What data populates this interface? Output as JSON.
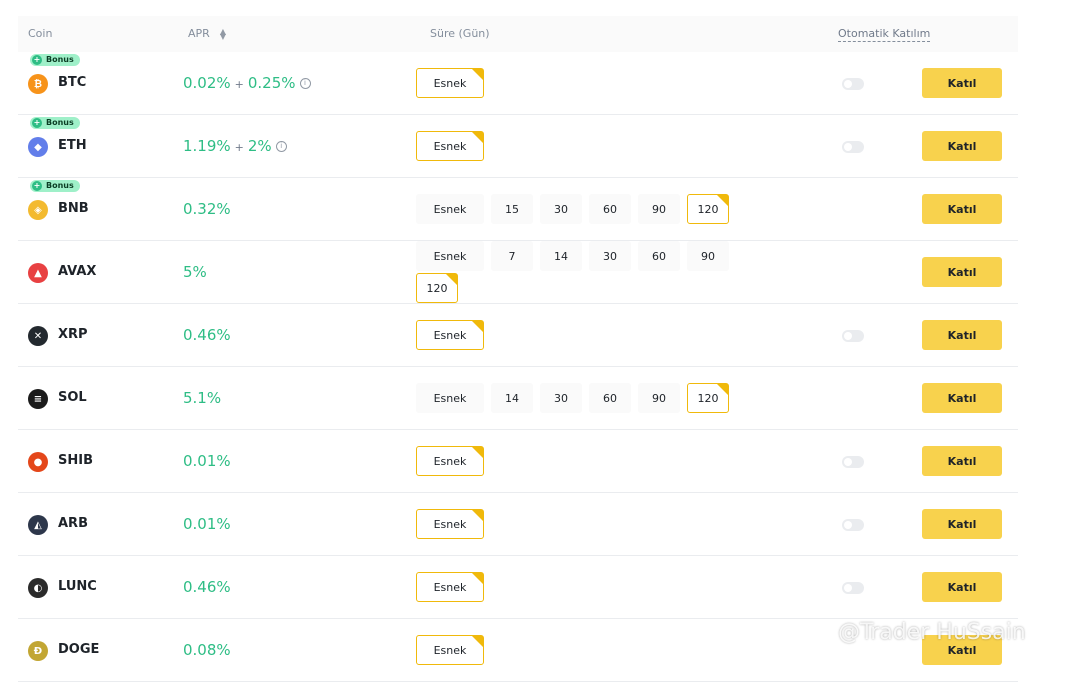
{
  "header": {
    "coin": "Coin",
    "apr": "APR",
    "duration": "Süre (Gün)",
    "auto": "Otomatik Katılım"
  },
  "bonus_label": "Bonus",
  "join_label": "Katıl",
  "flexible_label": "Esnek",
  "rows": [
    {
      "coin": "BTC",
      "color": "#f7931a",
      "glyph": "₿",
      "bonus": true,
      "apr": "0.02%",
      "plus": "+",
      "bonus_apr": "0.25%",
      "info": true,
      "durations": [
        "Esnek"
      ],
      "toggle": true
    },
    {
      "coin": "ETH",
      "color": "#627eea",
      "glyph": "◆",
      "bonus": true,
      "apr": "1.19%",
      "plus": "+",
      "bonus_apr": "2%",
      "info": true,
      "durations": [
        "Esnek"
      ],
      "toggle": true
    },
    {
      "coin": "BNB",
      "color": "#f3ba2f",
      "glyph": "◈",
      "bonus": true,
      "apr": "0.32%",
      "durations": [
        "Esnek",
        "15",
        "30",
        "60",
        "90",
        "120"
      ],
      "toggle": false
    },
    {
      "coin": "AVAX",
      "color": "#e84142",
      "glyph": "▲",
      "bonus": false,
      "apr": "5%",
      "durations": [
        "Esnek",
        "7",
        "14",
        "30",
        "60",
        "90",
        "120"
      ],
      "toggle": false
    },
    {
      "coin": "XRP",
      "color": "#23292f",
      "glyph": "✕",
      "bonus": false,
      "apr": "0.46%",
      "durations": [
        "Esnek"
      ],
      "toggle": true
    },
    {
      "coin": "SOL",
      "color": "#1b1b1b",
      "glyph": "≡",
      "bonus": false,
      "apr": "5.1%",
      "durations": [
        "Esnek",
        "14",
        "30",
        "60",
        "90",
        "120"
      ],
      "toggle": false
    },
    {
      "coin": "SHIB",
      "color": "#e4471a",
      "glyph": "●",
      "bonus": false,
      "apr": "0.01%",
      "durations": [
        "Esnek"
      ],
      "toggle": true
    },
    {
      "coin": "ARB",
      "color": "#2d374b",
      "glyph": "◭",
      "bonus": false,
      "apr": "0.01%",
      "durations": [
        "Esnek"
      ],
      "toggle": true
    },
    {
      "coin": "LUNC",
      "color": "#2b2b2b",
      "glyph": "◐",
      "bonus": false,
      "apr": "0.46%",
      "durations": [
        "Esnek"
      ],
      "toggle": true
    },
    {
      "coin": "DOGE",
      "color": "#c2a633",
      "glyph": "Ð",
      "bonus": false,
      "apr": "0.08%",
      "durations": [
        "Esnek"
      ],
      "toggle": false
    }
  ],
  "watermark": "@Trader HuSsain"
}
